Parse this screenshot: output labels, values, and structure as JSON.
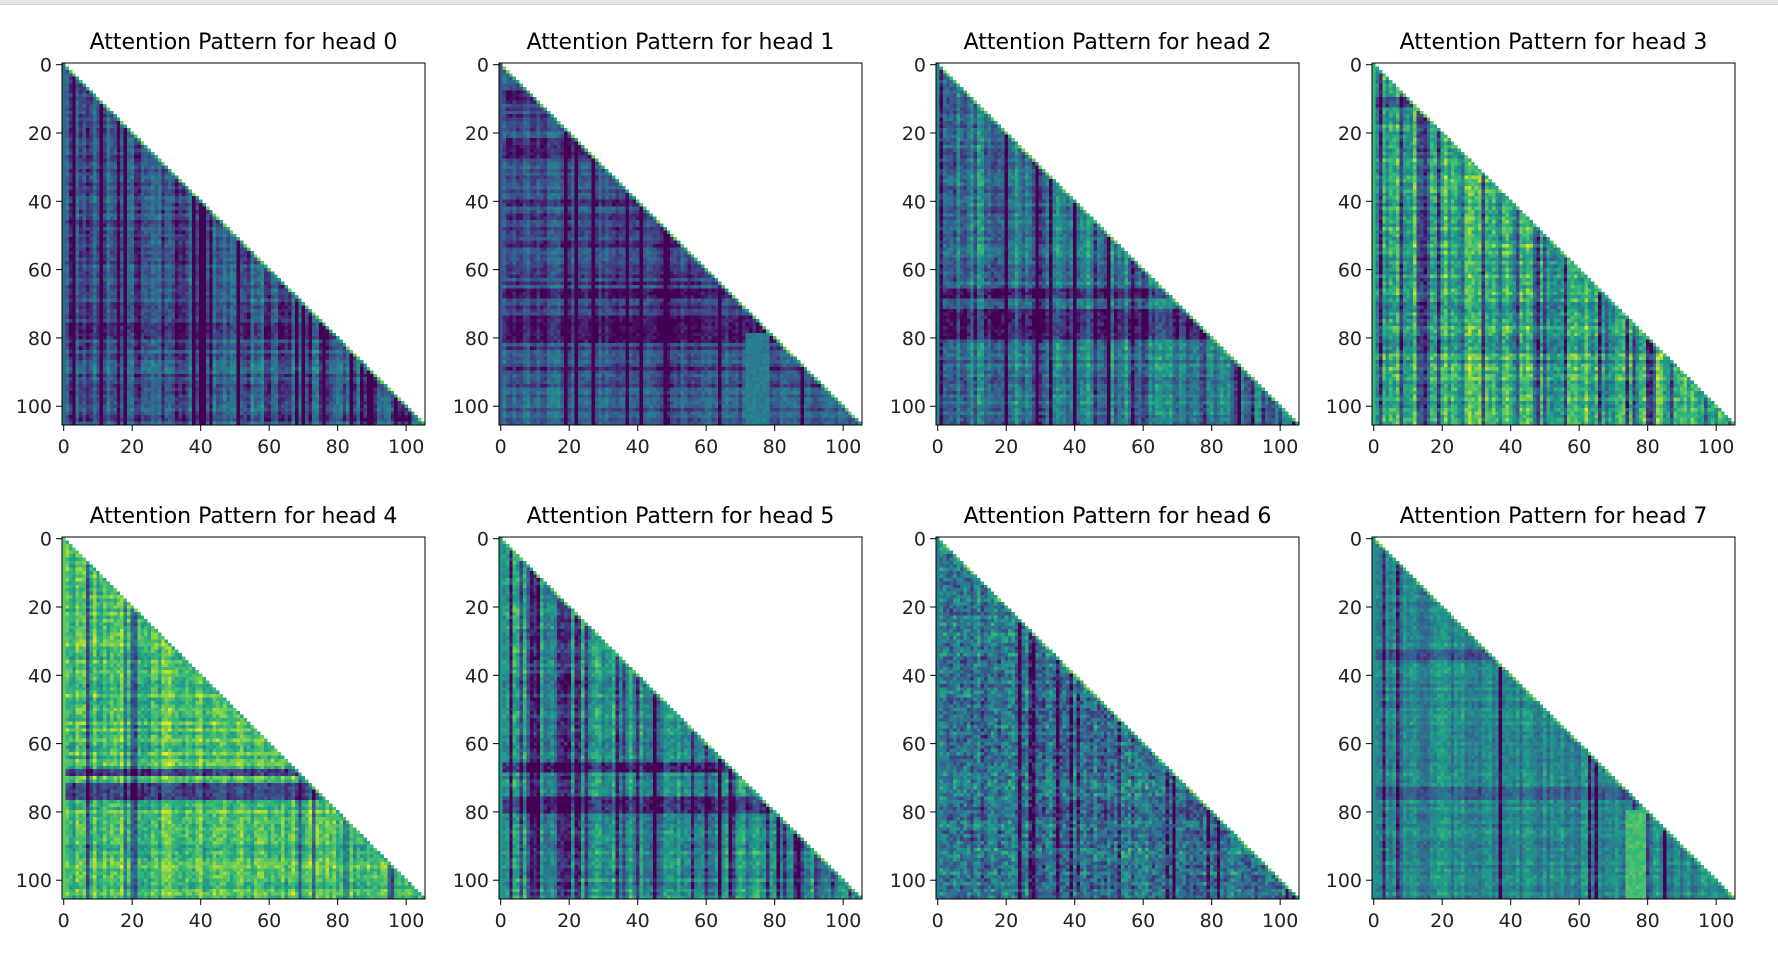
{
  "chart_data": [
    {
      "type": "heatmap",
      "title": "Attention Pattern for head 0",
      "head": 0,
      "mask": "causal lower-triangular",
      "size": 106,
      "xlim": [
        0,
        105
      ],
      "ylim": [
        105,
        0
      ],
      "xticks": [
        0,
        20,
        40,
        60,
        80,
        100
      ],
      "yticks": [
        0,
        20,
        40,
        60,
        80,
        100
      ],
      "colormap": "viridis",
      "style": "predominantly dark teal-blue with dark vertical columns and horizontal bands; band near row 75-80"
    },
    {
      "type": "heatmap",
      "title": "Attention Pattern for head 1",
      "head": 1,
      "mask": "causal lower-triangular",
      "size": 106,
      "xlim": [
        0,
        105
      ],
      "ylim": [
        105,
        0
      ],
      "xticks": [
        0,
        20,
        40,
        60,
        80,
        100
      ],
      "yticks": [
        0,
        20,
        40,
        60,
        80,
        100
      ],
      "colormap": "viridis",
      "style": "dark blue with strong dark horizontal bands near rows 8, 25, 67, 75-80"
    },
    {
      "type": "heatmap",
      "title": "Attention Pattern for head 2",
      "head": 2,
      "mask": "causal lower-triangular",
      "size": 106,
      "xlim": [
        0,
        105
      ],
      "ylim": [
        105,
        0
      ],
      "xticks": [
        0,
        20,
        40,
        60,
        80,
        100
      ],
      "yticks": [
        0,
        20,
        40,
        60,
        80,
        100
      ],
      "colormap": "viridis",
      "style": "green-teal with vertical stripes; dark horizontal band around rows 67-80"
    },
    {
      "type": "heatmap",
      "title": "Attention Pattern for head 3",
      "head": 3,
      "mask": "causal lower-triangular",
      "size": 106,
      "xlim": [
        0,
        105
      ],
      "ylim": [
        105,
        0
      ],
      "xticks": [
        0,
        20,
        40,
        60,
        80,
        100
      ],
      "yticks": [
        0,
        20,
        40,
        60,
        80,
        100
      ],
      "colormap": "viridis",
      "style": "bright green-yellow grid with dark vertical columns"
    },
    {
      "type": "heatmap",
      "title": "Attention Pattern for head 4",
      "head": 4,
      "mask": "causal lower-triangular",
      "size": 106,
      "xlim": [
        0,
        105
      ],
      "ylim": [
        105,
        0
      ],
      "xticks": [
        0,
        20,
        40,
        60,
        80,
        100
      ],
      "yticks": [
        0,
        20,
        40,
        60,
        80,
        100
      ],
      "colormap": "viridis",
      "style": "bright yellow-green with dark horizontal band near rows 72-76"
    },
    {
      "type": "heatmap",
      "title": "Attention Pattern for head 5",
      "head": 5,
      "mask": "causal lower-triangular",
      "size": 106,
      "xlim": [
        0,
        105
      ],
      "ylim": [
        105,
        0
      ],
      "xticks": [
        0,
        20,
        40,
        60,
        80,
        100
      ],
      "yticks": [
        0,
        20,
        40,
        60,
        80,
        100
      ],
      "colormap": "viridis",
      "style": "teal-green with many sharp dark purple vertical columns"
    },
    {
      "type": "heatmap",
      "title": "Attention Pattern for head 6",
      "head": 6,
      "mask": "causal lower-triangular",
      "size": 106,
      "xlim": [
        0,
        105
      ],
      "ylim": [
        105,
        0
      ],
      "xticks": [
        0,
        20,
        40,
        60,
        80,
        100
      ],
      "yticks": [
        0,
        20,
        40,
        60,
        80,
        100
      ],
      "colormap": "viridis",
      "style": "mid teal with speckled dark pixels"
    },
    {
      "type": "heatmap",
      "title": "Attention Pattern for head 7",
      "head": 7,
      "mask": "causal lower-triangular",
      "size": 106,
      "xlim": [
        0,
        105
      ],
      "ylim": [
        105,
        0
      ],
      "xticks": [
        0,
        20,
        40,
        60,
        80,
        100
      ],
      "yticks": [
        0,
        20,
        40,
        60,
        80,
        100
      ],
      "colormap": "viridis",
      "style": "uniform teal-green with faint stripes and a bright patch near column 75"
    }
  ]
}
